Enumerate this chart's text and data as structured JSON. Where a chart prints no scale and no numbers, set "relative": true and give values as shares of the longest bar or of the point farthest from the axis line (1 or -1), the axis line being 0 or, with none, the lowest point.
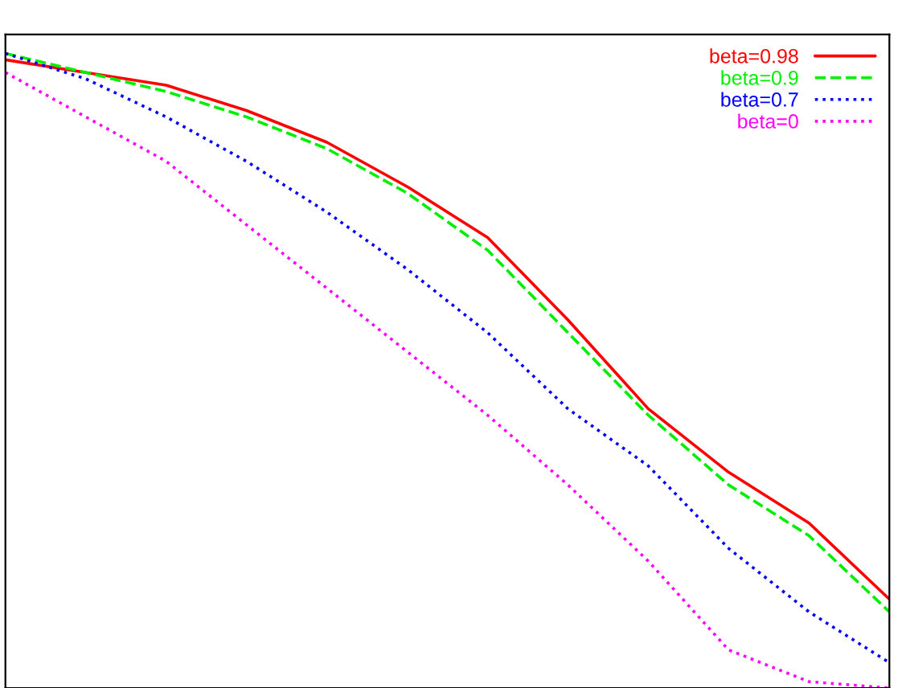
{
  "chart_data": {
    "type": "line",
    "relative": true,
    "legend": "top right",
    "categories": [
      null,
      null,
      null,
      null,
      null,
      null,
      null,
      null,
      null,
      null,
      null,
      null
    ],
    "series": [
      {
        "name": "beta=0.98",
        "color": "#ff0000",
        "line_style": "solid",
        "values": [
          0.99,
          0.97,
          0.95,
          0.91,
          0.86,
          0.79,
          0.71,
          0.58,
          0.44,
          0.34,
          0.26,
          0.14
        ]
      },
      {
        "name": "beta=0.9",
        "color": "#00ee00",
        "line_style": "dashed",
        "values": [
          1.0,
          0.97,
          0.94,
          0.9,
          0.85,
          0.78,
          0.69,
          0.56,
          0.43,
          0.32,
          0.24,
          0.12
        ]
      },
      {
        "name": "beta=0.7",
        "color": "#0000ff",
        "line_style": "dotted",
        "values": [
          1.0,
          0.96,
          0.9,
          0.83,
          0.75,
          0.66,
          0.56,
          0.44,
          0.35,
          0.22,
          0.12,
          0.04
        ]
      },
      {
        "name": "beta=0",
        "color": "#ff00ff",
        "line_style": "dotted",
        "values": [
          0.97,
          0.9,
          0.83,
          0.73,
          0.63,
          0.53,
          0.43,
          0.32,
          0.2,
          0.06,
          0.01,
          0.0
        ]
      }
    ]
  }
}
